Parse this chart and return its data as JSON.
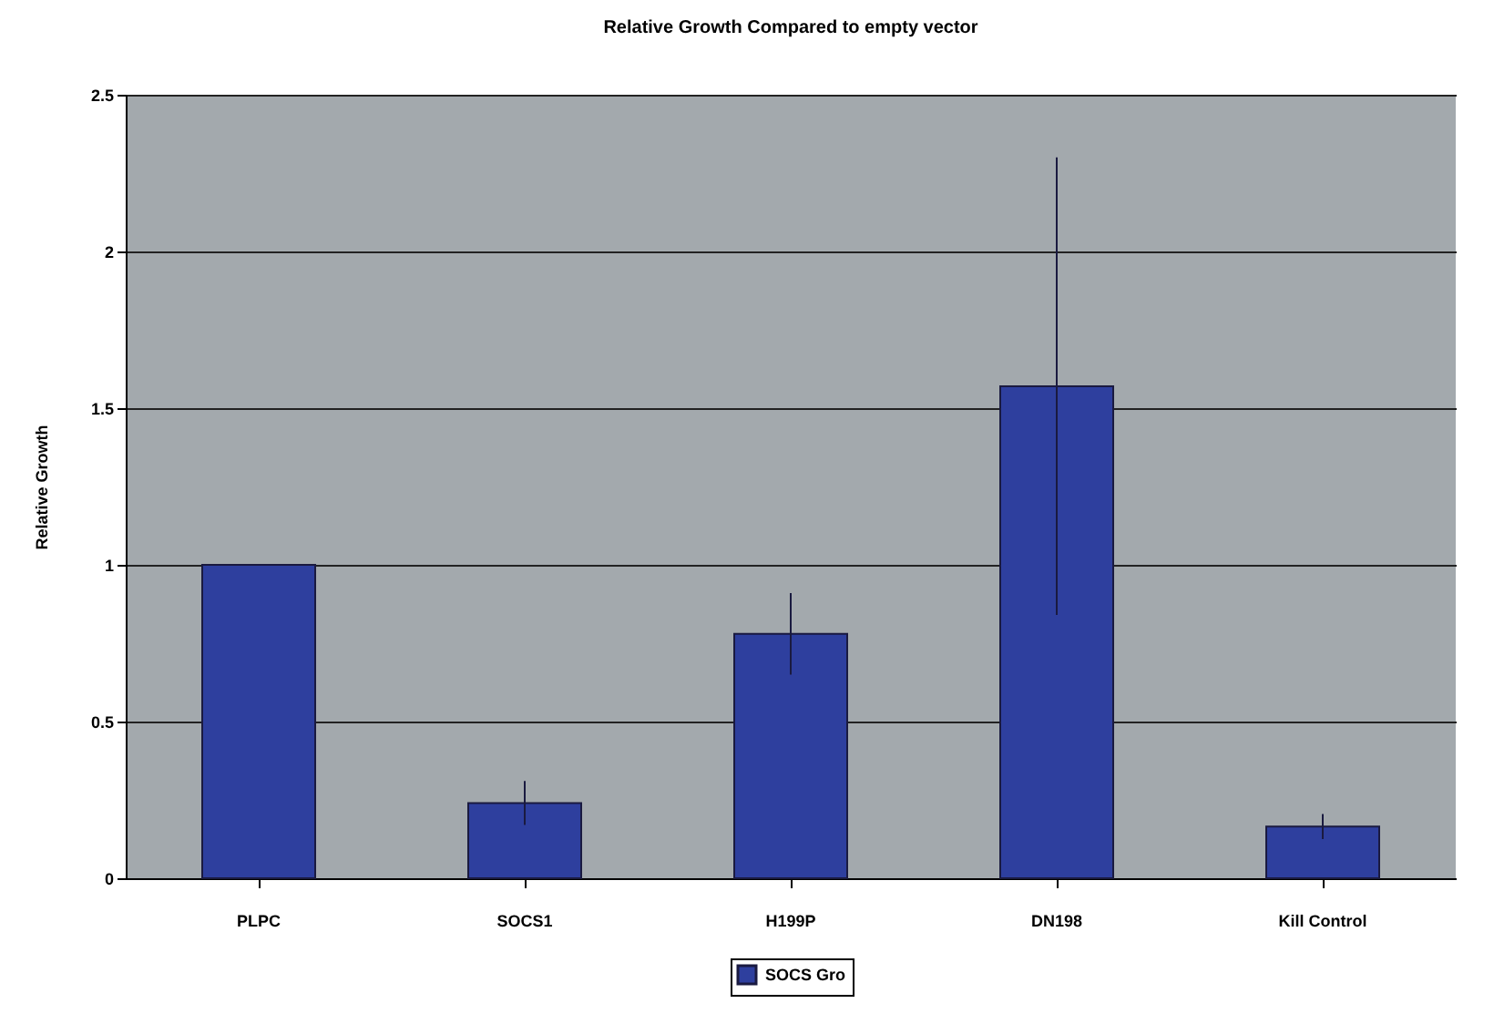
{
  "chart_data": {
    "type": "bar",
    "title": "Relative Growth Compared to empty vector",
    "ylabel": "Relative Growth",
    "categories": [
      "PLPC",
      "SOCS1",
      "H199P",
      "DN198",
      "Kill Control"
    ],
    "series": [
      {
        "name": "SOCS Gro",
        "color": "#2e3f9e",
        "values": [
          1.0,
          0.24,
          0.78,
          1.57,
          0.165
        ],
        "errors": [
          null,
          0.07,
          0.13,
          0.73,
          0.04
        ]
      }
    ],
    "ylim": [
      0,
      2.5
    ],
    "yticks": [
      0,
      0.5,
      1,
      1.5,
      2,
      2.5
    ],
    "grid": "y",
    "legend": "bottom"
  }
}
